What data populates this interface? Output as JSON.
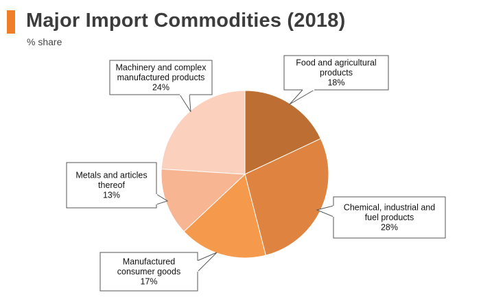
{
  "header": {
    "title": "Major Import Commodities (2018)",
    "subtitle": "% share",
    "accent_color": "#f07d28"
  },
  "chart_data": {
    "type": "pie",
    "title": "Major Import Commodities (2018)",
    "subtitle": "% share",
    "unit": "%",
    "start_angle_deg": 0,
    "direction": "clockwise",
    "slices": [
      {
        "label_lines": [
          "Food and agricultural",
          "products"
        ],
        "value": 18,
        "value_label": "18%",
        "color": "#bd6f33"
      },
      {
        "label_lines": [
          "Chemical, industrial and",
          "fuel products"
        ],
        "value": 28,
        "value_label": "28%",
        "color": "#de8440"
      },
      {
        "label_lines": [
          "Manufactured",
          "consumer goods"
        ],
        "value": 17,
        "value_label": "17%",
        "color": "#f59a4c"
      },
      {
        "label_lines": [
          "Metals and articles",
          "thereof"
        ],
        "value": 13,
        "value_label": "13%",
        "color": "#f7b592"
      },
      {
        "label_lines": [
          "Machinery and complex",
          "manufactured products"
        ],
        "value": 24,
        "value_label": "24%",
        "color": "#fbd1be"
      }
    ]
  }
}
